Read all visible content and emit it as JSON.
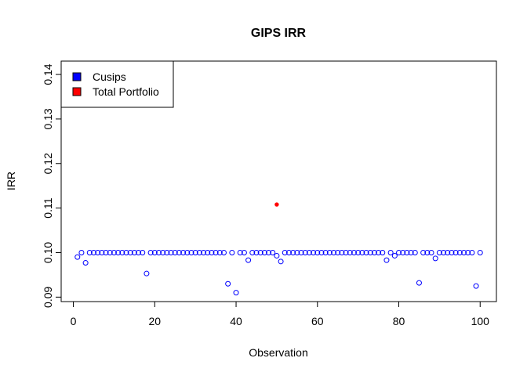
{
  "chart_data": {
    "type": "scatter",
    "title": "GIPS IRR",
    "xlabel": "Observation",
    "ylabel": "IRR",
    "xlim": [
      -3,
      104
    ],
    "ylim": [
      0.089,
      0.143
    ],
    "x_ticks": [
      0,
      20,
      40,
      60,
      80,
      100
    ],
    "y_ticks": [
      0.09,
      0.1,
      0.11,
      0.12,
      0.13,
      0.14
    ],
    "grid": false,
    "legend": {
      "position": "top-left",
      "entries": [
        {
          "label": "Cusips",
          "color": "#0000FF"
        },
        {
          "label": "Total Portfolio",
          "color": "#FF0000"
        }
      ]
    },
    "series": [
      {
        "name": "Cusips",
        "color": "#0000FF",
        "marker": "open-circle",
        "x": [
          1,
          2,
          3,
          4,
          5,
          6,
          7,
          8,
          9,
          10,
          11,
          12,
          13,
          14,
          15,
          16,
          17,
          18,
          19,
          20,
          21,
          22,
          23,
          24,
          25,
          26,
          27,
          28,
          29,
          30,
          31,
          32,
          33,
          34,
          35,
          36,
          37,
          38,
          39,
          40,
          41,
          42,
          43,
          44,
          45,
          46,
          47,
          48,
          49,
          50,
          51,
          52,
          53,
          54,
          55,
          56,
          57,
          58,
          59,
          60,
          61,
          62,
          63,
          64,
          65,
          66,
          67,
          68,
          69,
          70,
          71,
          72,
          73,
          74,
          75,
          76,
          77,
          78,
          79,
          80,
          81,
          82,
          83,
          84,
          85,
          86,
          87,
          88,
          89,
          90,
          91,
          92,
          93,
          94,
          95,
          96,
          97,
          98,
          99,
          100
        ],
        "y": [
          0.099,
          0.1,
          0.0977,
          0.1,
          0.1,
          0.1,
          0.1,
          0.1,
          0.1,
          0.1,
          0.1,
          0.1,
          0.1,
          0.1,
          0.1,
          0.1,
          0.1,
          0.0953,
          0.1,
          0.1,
          0.1,
          0.1,
          0.1,
          0.1,
          0.1,
          0.1,
          0.1,
          0.1,
          0.1,
          0.1,
          0.1,
          0.1,
          0.1,
          0.1,
          0.1,
          0.1,
          0.1,
          0.093,
          0.1,
          0.091,
          0.1,
          0.1,
          0.0983,
          0.1,
          0.1,
          0.1,
          0.1,
          0.1,
          0.1,
          0.0993,
          0.098,
          0.1,
          0.1,
          0.1,
          0.1,
          0.1,
          0.1,
          0.1,
          0.1,
          0.1,
          0.1,
          0.1,
          0.1,
          0.1,
          0.1,
          0.1,
          0.1,
          0.1,
          0.1,
          0.1,
          0.1,
          0.1,
          0.1,
          0.1,
          0.1,
          0.1,
          0.0983,
          0.1,
          0.0993,
          0.1,
          0.1,
          0.1,
          0.1,
          0.1,
          0.0932,
          0.1,
          0.1,
          0.1,
          0.0987,
          0.1,
          0.1,
          0.1,
          0.1,
          0.1,
          0.1,
          0.1,
          0.1,
          0.1,
          0.0925,
          0.1
        ]
      },
      {
        "name": "Total Portfolio",
        "color": "#FF0000",
        "marker": "filled-circle",
        "x": [
          50
        ],
        "y": [
          0.1108
        ]
      }
    ]
  }
}
